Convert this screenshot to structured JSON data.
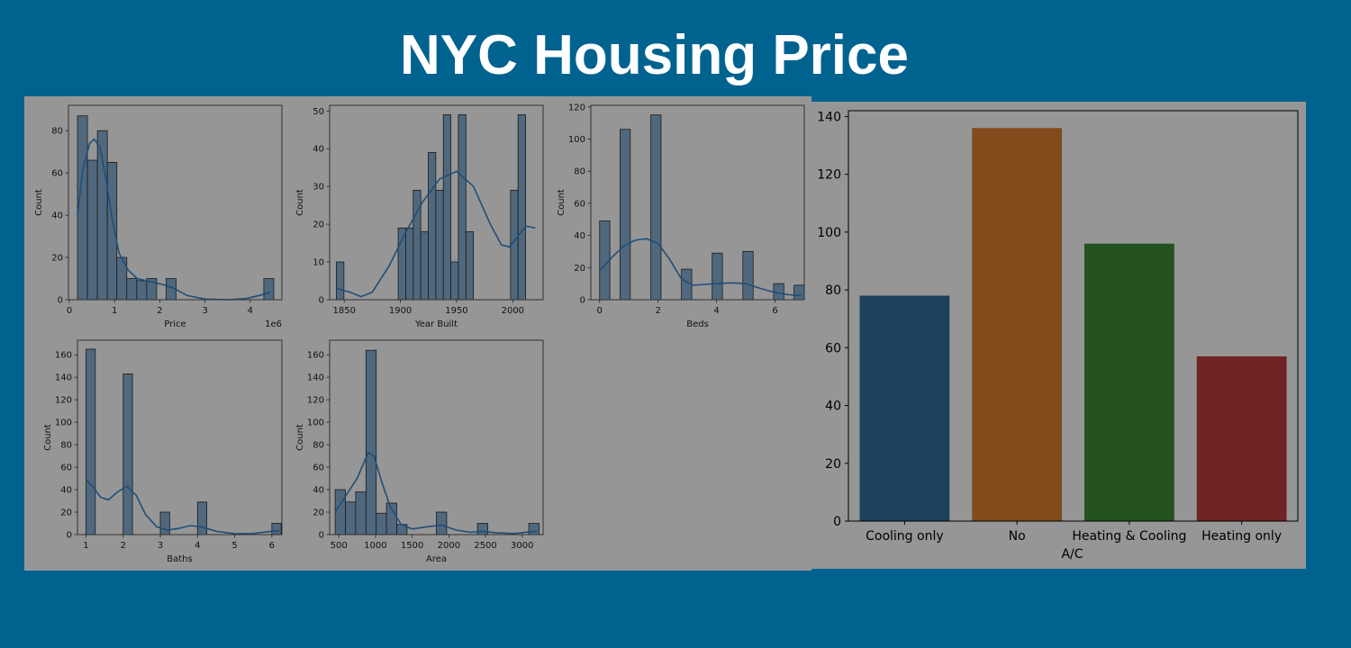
{
  "page": {
    "title": "NYC Housing Price"
  },
  "colors": {
    "page_background": "#00628f",
    "panel_background": "#969696",
    "histogram_bar": "#4f687d",
    "kde_line": "#1f4e79"
  },
  "chart_data": [
    {
      "type": "bar",
      "subtype": "histogram",
      "title": "",
      "xlabel": "Price",
      "ylabel": "Count",
      "x_offset_label": "1e6",
      "xlim": [
        -0.02,
        4.7
      ],
      "ylim": [
        0,
        92
      ],
      "xticks": [
        0,
        1,
        2,
        3,
        4
      ],
      "yticks": [
        0,
        20,
        40,
        60,
        80
      ],
      "bins": [
        [
          0.18,
          0.4,
          87
        ],
        [
          0.4,
          0.62,
          66
        ],
        [
          0.62,
          0.84,
          80
        ],
        [
          0.84,
          1.05,
          65
        ],
        [
          1.05,
          1.27,
          20
        ],
        [
          1.27,
          1.49,
          10
        ],
        [
          1.49,
          1.71,
          9
        ],
        [
          1.71,
          1.93,
          10
        ],
        [
          2.14,
          2.36,
          10
        ],
        [
          4.3,
          4.52,
          10
        ]
      ],
      "kde": [
        [
          0.18,
          40
        ],
        [
          0.3,
          62
        ],
        [
          0.45,
          74
        ],
        [
          0.55,
          76
        ],
        [
          0.68,
          72
        ],
        [
          0.8,
          58
        ],
        [
          0.95,
          38
        ],
        [
          1.1,
          22
        ],
        [
          1.3,
          14
        ],
        [
          1.5,
          10
        ],
        [
          1.7,
          9
        ],
        [
          1.9,
          8
        ],
        [
          2.1,
          7
        ],
        [
          2.3,
          5.5
        ],
        [
          2.6,
          2
        ],
        [
          3.0,
          0.3
        ],
        [
          3.5,
          0
        ],
        [
          3.9,
          0.5
        ],
        [
          4.2,
          2
        ],
        [
          4.45,
          3.5
        ]
      ]
    },
    {
      "type": "bar",
      "subtype": "histogram",
      "title": "",
      "xlabel": "Year Built",
      "ylabel": "Count",
      "xlim": [
        1837,
        2027
      ],
      "ylim": [
        0,
        51.5
      ],
      "xticks": [
        1850,
        1900,
        1950,
        2000
      ],
      "yticks": [
        0,
        10,
        20,
        30,
        40,
        50
      ],
      "bins": [
        [
          1843,
          1849.7,
          10
        ],
        [
          1898,
          1904.7,
          19
        ],
        [
          1904.7,
          1911.4,
          19
        ],
        [
          1911.4,
          1918.1,
          29
        ],
        [
          1918.1,
          1924.8,
          18
        ],
        [
          1924.8,
          1931.5,
          39
        ],
        [
          1931.5,
          1938.2,
          29
        ],
        [
          1938.2,
          1944.9,
          49
        ],
        [
          1944.9,
          1951.6,
          10
        ],
        [
          1951.6,
          1958.3,
          49
        ],
        [
          1958.3,
          1965,
          18
        ],
        [
          1998,
          2004.7,
          29
        ],
        [
          2004.7,
          2011.4,
          49
        ]
      ],
      "kde": [
        [
          1843,
          3
        ],
        [
          1855,
          2
        ],
        [
          1865,
          0.8
        ],
        [
          1875,
          2
        ],
        [
          1890,
          9
        ],
        [
          1905,
          18
        ],
        [
          1920,
          26
        ],
        [
          1935,
          32
        ],
        [
          1950,
          34
        ],
        [
          1965,
          30
        ],
        [
          1980,
          20
        ],
        [
          1990,
          14.5
        ],
        [
          1997,
          14
        ],
        [
          2005,
          17
        ],
        [
          2012,
          19.5
        ],
        [
          2020,
          19
        ]
      ]
    },
    {
      "type": "bar",
      "subtype": "histogram",
      "title": "",
      "xlabel": "Beds",
      "ylabel": "Count",
      "xlim": [
        -0.3,
        7.0
      ],
      "ylim": [
        0,
        121
      ],
      "xticks": [
        0,
        2,
        4,
        6
      ],
      "yticks": [
        0,
        20,
        40,
        60,
        80,
        100,
        120
      ],
      "bins": [
        [
          0,
          0.35,
          49
        ],
        [
          0.7,
          1.05,
          106
        ],
        [
          1.75,
          2.1,
          115
        ],
        [
          2.8,
          3.15,
          19
        ],
        [
          3.85,
          4.2,
          29
        ],
        [
          4.9,
          5.25,
          30
        ],
        [
          5.95,
          6.3,
          10
        ],
        [
          6.65,
          7.0,
          9
        ]
      ],
      "kde": [
        [
          0,
          18
        ],
        [
          0.4,
          26
        ],
        [
          0.8,
          33
        ],
        [
          1.2,
          37
        ],
        [
          1.6,
          38
        ],
        [
          2.0,
          35
        ],
        [
          2.4,
          25
        ],
        [
          2.8,
          13
        ],
        [
          3.2,
          9
        ],
        [
          3.6,
          9.5
        ],
        [
          4.0,
          10
        ],
        [
          4.5,
          10.5
        ],
        [
          5.0,
          10
        ],
        [
          5.5,
          7
        ],
        [
          6.0,
          4.5
        ],
        [
          6.5,
          3
        ],
        [
          6.9,
          2.5
        ]
      ]
    },
    {
      "type": "bar",
      "subtype": "histogram",
      "title": "",
      "xlabel": "Baths",
      "ylabel": "Count",
      "xlim": [
        0.77,
        6.27
      ],
      "ylim": [
        0,
        173
      ],
      "xticks": [
        1,
        2,
        3,
        4,
        5,
        6
      ],
      "yticks": [
        0,
        20,
        40,
        60,
        80,
        100,
        120,
        140,
        160
      ],
      "bins": [
        [
          1.0,
          1.25,
          165
        ],
        [
          2.0,
          2.25,
          143
        ],
        [
          3.0,
          3.25,
          20
        ],
        [
          4.0,
          4.25,
          29
        ],
        [
          6.0,
          6.25,
          10
        ]
      ],
      "kde": [
        [
          1.0,
          49
        ],
        [
          1.2,
          42
        ],
        [
          1.4,
          33
        ],
        [
          1.6,
          31
        ],
        [
          1.85,
          38
        ],
        [
          2.1,
          43
        ],
        [
          2.35,
          35
        ],
        [
          2.6,
          18
        ],
        [
          2.9,
          7
        ],
        [
          3.2,
          4
        ],
        [
          3.5,
          5.5
        ],
        [
          3.8,
          8
        ],
        [
          4.1,
          7
        ],
        [
          4.5,
          3
        ],
        [
          5.0,
          0.8
        ],
        [
          5.5,
          1
        ],
        [
          6.0,
          3
        ],
        [
          6.2,
          3.5
        ]
      ]
    },
    {
      "type": "bar",
      "subtype": "histogram",
      "title": "",
      "xlabel": "Area",
      "ylabel": "Count",
      "xlim": [
        375,
        3285
      ],
      "ylim": [
        0,
        173
      ],
      "xticks": [
        500,
        1000,
        1500,
        2000,
        2500,
        3000
      ],
      "yticks": [
        0,
        20,
        40,
        60,
        80,
        100,
        120,
        140,
        160
      ],
      "bins": [
        [
          450,
          590,
          40
        ],
        [
          590,
          730,
          29
        ],
        [
          730,
          870,
          38
        ],
        [
          870,
          1010,
          164
        ],
        [
          1010,
          1150,
          19
        ],
        [
          1150,
          1290,
          28
        ],
        [
          1290,
          1430,
          9
        ],
        [
          1830,
          1970,
          20
        ],
        [
          2390,
          2530,
          10
        ],
        [
          3090,
          3230,
          10
        ]
      ],
      "kde": [
        [
          450,
          20
        ],
        [
          600,
          35
        ],
        [
          750,
          50
        ],
        [
          900,
          73
        ],
        [
          980,
          70
        ],
        [
          1080,
          48
        ],
        [
          1200,
          25
        ],
        [
          1350,
          9
        ],
        [
          1500,
          5
        ],
        [
          1700,
          7
        ],
        [
          1900,
          8.5
        ],
        [
          2100,
          4
        ],
        [
          2300,
          2
        ],
        [
          2450,
          3
        ],
        [
          2650,
          1.5
        ],
        [
          2900,
          1
        ],
        [
          3100,
          2.5
        ],
        [
          3200,
          3
        ]
      ]
    },
    {
      "type": "bar",
      "title": "",
      "xlabel": "A/C",
      "ylabel": "",
      "categories": [
        "Cooling only",
        "No",
        "Heating & Cooling",
        "Heating only"
      ],
      "values": [
        78,
        136,
        96,
        57
      ],
      "colors": [
        "#1c415d",
        "#824b1b",
        "#23521f",
        "#6f2323"
      ],
      "ylim": [
        0,
        142
      ],
      "yticks": [
        0,
        20,
        40,
        60,
        80,
        100,
        120,
        140
      ]
    }
  ]
}
